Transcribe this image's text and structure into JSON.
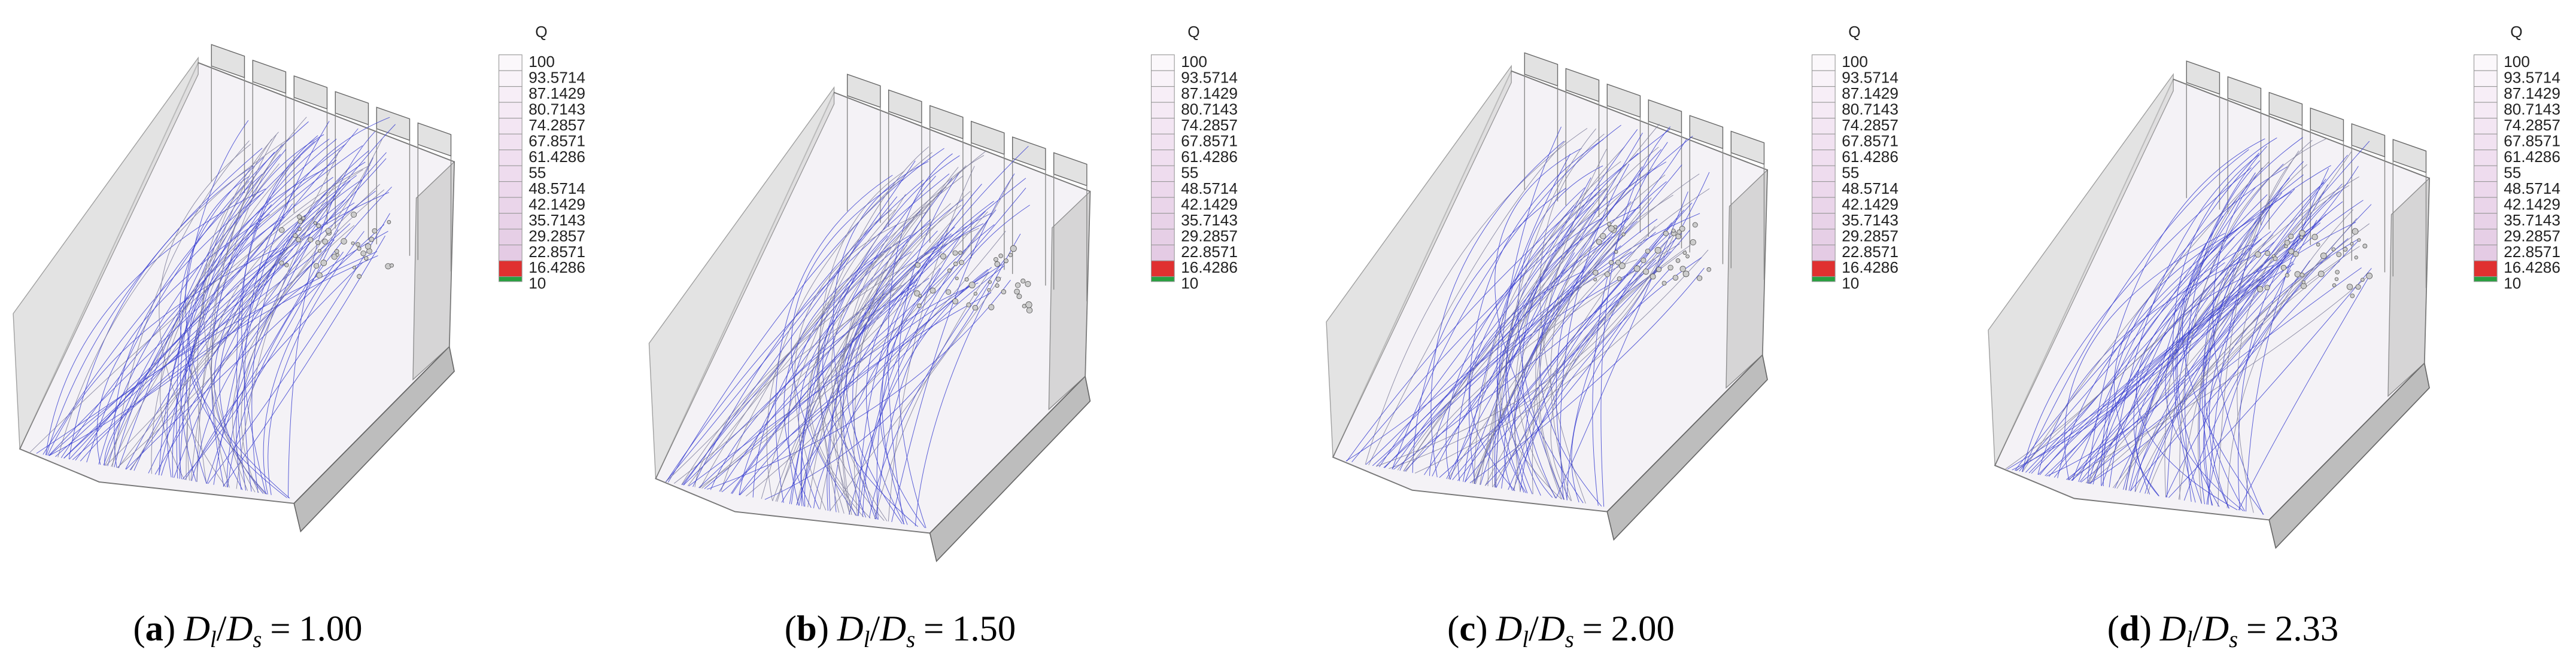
{
  "legend": {
    "title": "Q",
    "labels": [
      "100",
      "93.5714",
      "87.1429",
      "80.7143",
      "74.2857",
      "67.8571",
      "61.4286",
      "55",
      "48.5714",
      "42.1429",
      "35.7143",
      "29.2857",
      "22.8571",
      "16.4286",
      "10"
    ]
  },
  "caption": {
    "open": "(",
    "close": ")",
    "symbol": "D",
    "sub_top": "l",
    "slash": "/",
    "sub_bottom": "s",
    "equals": "="
  },
  "panels": [
    {
      "label": "a",
      "ratio": "1.00"
    },
    {
      "label": "b",
      "ratio": "1.50"
    },
    {
      "label": "c",
      "ratio": "2.00"
    },
    {
      "label": "d",
      "ratio": "2.33"
    }
  ]
}
